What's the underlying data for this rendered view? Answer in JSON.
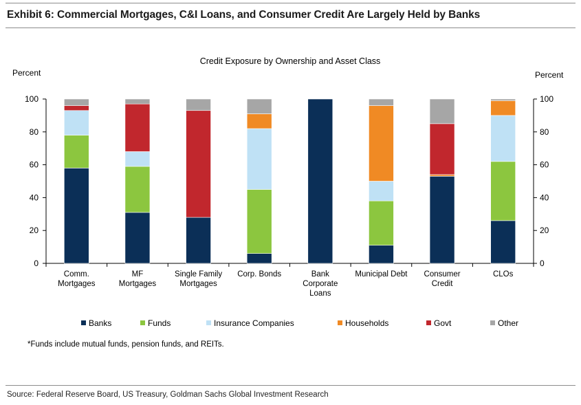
{
  "exhibit_title": "Exhibit 6: Commercial Mortgages, C&I Loans, and Consumer Credit Are Largely Held by Banks",
  "footnote": "*Funds include mutual funds, pension funds, and REITs.",
  "source": "Source: Federal Reserve Board, US Treasury, Goldman Sachs Global Investment Research",
  "colors": {
    "Banks": "#0b2f57",
    "Funds": "#8cc63f",
    "Insurance Companies": "#bfe1f5",
    "Households": "#f08a24",
    "Govt": "#c1272d",
    "Other": "#a6a6a6"
  },
  "chart_data": {
    "type": "bar",
    "stacked": true,
    "title": "Credit Exposure by Ownership and Asset Class",
    "ylabel_left": "Percent",
    "ylabel_right": "Percent",
    "ylim": [
      0,
      100
    ],
    "yticks": [
      0,
      20,
      40,
      60,
      80,
      100
    ],
    "categories": [
      [
        "Comm.",
        "Mortgages"
      ],
      [
        "MF",
        "Mortgages"
      ],
      [
        "Single Family",
        "Mortgages"
      ],
      [
        "Corp. Bonds"
      ],
      [
        "Bank",
        "Corporate",
        "Loans"
      ],
      [
        "Municipal Debt"
      ],
      [
        "Consumer",
        "Credit"
      ],
      [
        "CLOs"
      ]
    ],
    "series": [
      {
        "name": "Banks",
        "values": [
          58,
          31,
          28,
          6,
          100,
          11,
          53,
          26
        ]
      },
      {
        "name": "Funds",
        "values": [
          20,
          28,
          0,
          39,
          0,
          27,
          0,
          36
        ]
      },
      {
        "name": "Insurance Companies",
        "values": [
          15,
          9,
          0,
          37,
          0,
          12,
          0,
          28
        ]
      },
      {
        "name": "Households",
        "values": [
          0,
          0,
          0,
          9,
          0,
          46,
          1,
          9
        ]
      },
      {
        "name": "Govt",
        "values": [
          3,
          29,
          65,
          0,
          0,
          0,
          31,
          0
        ]
      },
      {
        "name": "Other",
        "values": [
          4,
          3,
          7,
          9,
          0,
          4,
          15,
          1
        ]
      }
    ],
    "legend_position": "bottom"
  }
}
